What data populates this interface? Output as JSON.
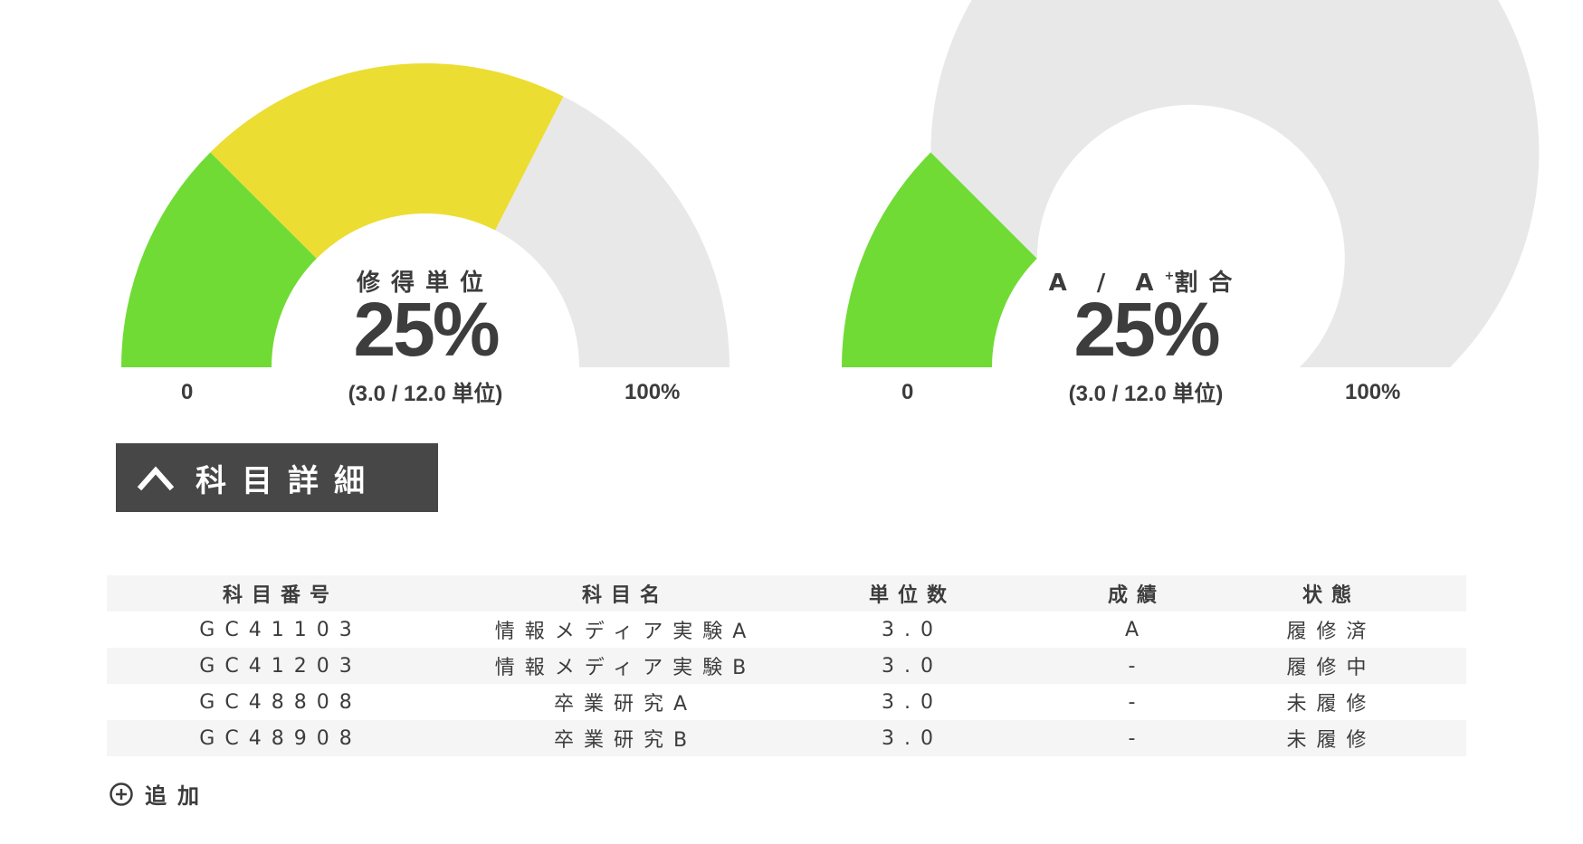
{
  "gauges": [
    {
      "title": "修得単位",
      "title_sup": "",
      "percent": "25%",
      "detail": "(3.0 / 12.0 単位)",
      "min_label": "0",
      "max_label": "100%",
      "segments": [
        {
          "fraction": 0.25,
          "color": "#70db35"
        },
        {
          "fraction": 0.4,
          "color": "#ecdd33"
        },
        {
          "fraction": 0.35,
          "color": "#e8e8e8"
        }
      ]
    },
    {
      "title": "A / A",
      "title_sup": "+",
      "title_suffix": "割合",
      "percent": "25%",
      "detail": "(3.0 / 12.0 単位)",
      "min_label": "0",
      "max_label": "100%",
      "segments": [
        {
          "fraction": 0.25,
          "color": "#70db35"
        },
        {
          "fraction": 0.75,
          "color": "#e8e8e8"
        }
      ]
    }
  ],
  "section": {
    "label": "科目詳細",
    "icon": "chevron-up-icon"
  },
  "table": {
    "headers": [
      "科目番号",
      "科目名",
      "単位数",
      "成績",
      "状態"
    ],
    "rows": [
      [
        "GC41103",
        "情報メディア実験A",
        "3.0",
        "A",
        "履修済"
      ],
      [
        "GC41203",
        "情報メディア実験B",
        "3.0",
        "-",
        "履修中"
      ],
      [
        "GC48808",
        "卒業研究A",
        "3.0",
        "-",
        "未履修"
      ],
      [
        "GC48908",
        "卒業研究B",
        "3.0",
        "-",
        "未履修"
      ]
    ]
  },
  "add": {
    "label": "追加",
    "icon": "plus-circle-icon"
  }
}
